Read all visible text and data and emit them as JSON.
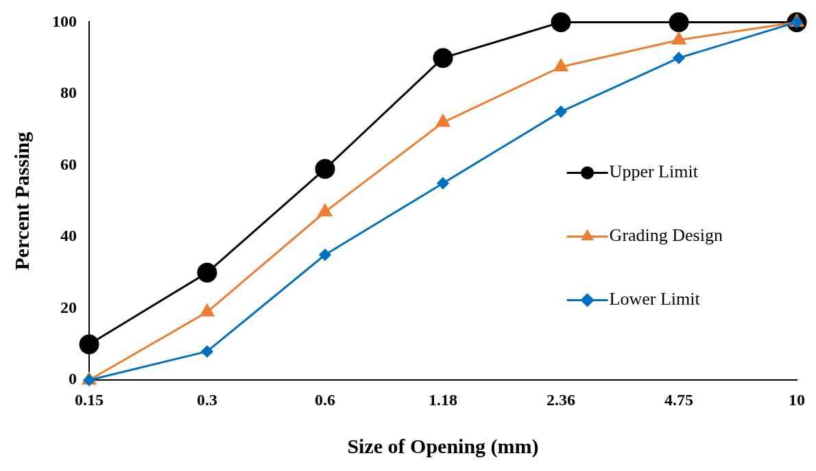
{
  "chart_data": {
    "type": "line",
    "xlabel": "Size of Opening (mm)",
    "ylabel": "Percent Passing",
    "categories": [
      "0.15",
      "0.3",
      "0.6",
      "1.18",
      "2.36",
      "4.75",
      "10"
    ],
    "ylim": [
      0,
      100
    ],
    "yticks": [
      0,
      20,
      40,
      60,
      80,
      100
    ],
    "grid": false,
    "legend": "right",
    "line_style": "solid",
    "series": [
      {
        "name": "Upper Limit",
        "color": "#000000",
        "marker": "circle",
        "values": [
          10,
          30,
          59,
          90,
          100,
          100,
          100
        ]
      },
      {
        "name": "Grading Design",
        "color": "#ed7d31",
        "marker": "triangle",
        "values": [
          0,
          19,
          47,
          72,
          87.5,
          95,
          100
        ]
      },
      {
        "name": "Lower Limit",
        "color": "#0070c0",
        "marker": "diamond",
        "values": [
          0,
          8,
          35,
          55,
          75,
          90,
          100
        ]
      }
    ]
  }
}
